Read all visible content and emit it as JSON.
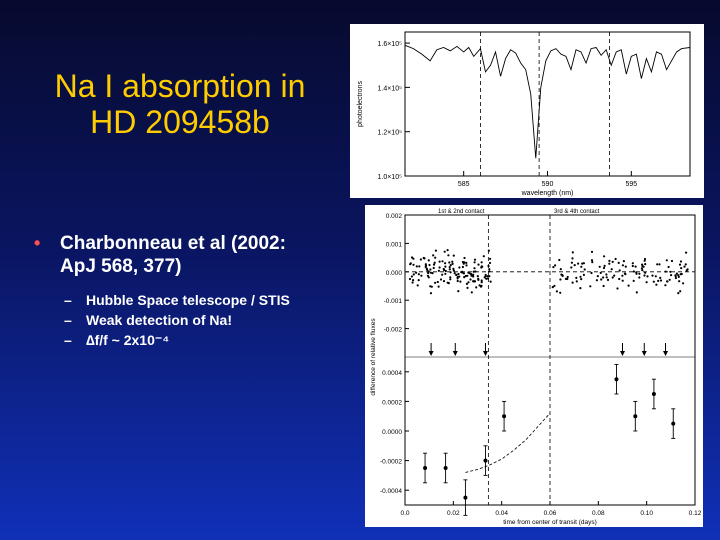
{
  "slide": {
    "title_line1": "Na I absorption in",
    "title_line2": "HD 209458b",
    "bullet": {
      "line1": "Charbonneau et al (2002:",
      "line2": "ApJ 568, 377)",
      "subbullets": [
        "Hubble Space telescope / STIS",
        "Weak detection of Na!",
        "∆f/f ~ 2x10⁻⁴"
      ]
    },
    "colors": {
      "title": "#ffcc00",
      "bullet_dot": "#ff5050",
      "text": "#ffffff"
    }
  },
  "chart_data": [
    {
      "type": "line",
      "xlabel": "wavelength (nm)",
      "ylabel": "photoelectrons",
      "ylim": [
        100000,
        165000
      ],
      "y_ticks": [
        {
          "value": 100000,
          "label": "1.0×10⁵"
        },
        {
          "value": 120000,
          "label": "1.2×10⁵"
        },
        {
          "value": 140000,
          "label": "1.4×10⁵"
        },
        {
          "value": 160000,
          "label": "1.6×10⁵"
        }
      ],
      "x_ticks": [
        {
          "value": 585,
          "label": "585"
        },
        {
          "value": 590,
          "label": "590"
        },
        {
          "value": 595,
          "label": "595"
        }
      ],
      "xlim": [
        581.5,
        598.5
      ],
      "vertical_dashed_lines": [
        586.0,
        589.5,
        593.7
      ],
      "series": [
        {
          "x": [
            581.5,
            582.0,
            582.5,
            583.0,
            583.4,
            583.8,
            584.2,
            584.6,
            585.0,
            585.3,
            585.6,
            586.0,
            586.3,
            586.6,
            586.9,
            587.2,
            587.5,
            587.8,
            588.1,
            588.4,
            588.7,
            589.0,
            589.3,
            589.6,
            589.9,
            590.2,
            590.5,
            590.8,
            591.1,
            591.4,
            591.7,
            592.0,
            592.3,
            592.6,
            592.9,
            593.2,
            593.5,
            593.8,
            594.1,
            594.4,
            594.7,
            595.0,
            595.3,
            595.6,
            595.9,
            596.2,
            596.5,
            596.8,
            597.1,
            597.4,
            597.7,
            598.0,
            598.5
          ],
          "values": [
            159000,
            157500,
            155000,
            152000,
            157000,
            158000,
            156500,
            158500,
            156000,
            158000,
            154000,
            157500,
            147000,
            150000,
            156000,
            145000,
            153000,
            157000,
            155500,
            151000,
            148000,
            137000,
            108000,
            140000,
            152000,
            156500,
            157500,
            155000,
            154000,
            148000,
            157000,
            156000,
            151000,
            157500,
            158000,
            154500,
            157000,
            150000,
            156000,
            157000,
            146000,
            154000,
            155000,
            144000,
            153000,
            147000,
            156000,
            155000,
            148000,
            152000,
            156000,
            157500,
            158000
          ]
        }
      ]
    },
    {
      "type": "scatter",
      "xlabel": "time from center of transit (days)",
      "ylabel": "difference of relative fluxes",
      "ylim": [
        -0.003,
        0.002
      ],
      "y_ticks": [
        {
          "value": 0.002,
          "label": "0.002"
        },
        {
          "value": 0.001,
          "label": "0.001"
        },
        {
          "value": 0.0,
          "label": "0.000"
        },
        {
          "value": -0.001,
          "label": "-0.001"
        },
        {
          "value": -0.002,
          "label": "-0.002"
        }
      ],
      "xlim": [
        0.0,
        0.12
      ],
      "contact_labels": [
        "1st & 2nd contact",
        "3rd & 4th contact"
      ],
      "contact_lines": [
        0.0345,
        0.06
      ],
      "mean_level": 0.0,
      "arrow_x": [
        0.0108,
        0.0208,
        0.0333,
        0.09,
        0.099,
        0.1078
      ],
      "points_note": "individual flux difference measurements scattered around zero"
    },
    {
      "type": "scatter",
      "xlabel": "time from center of transit (days)",
      "ylabel": "",
      "ylim": [
        -0.0005,
        0.0005
      ],
      "y_ticks": [
        {
          "value": 0.0004,
          "label": "0.0004"
        },
        {
          "value": 0.0002,
          "label": "0.0002"
        },
        {
          "value": 0.0,
          "label": "0.0000"
        },
        {
          "value": -0.0002,
          "label": "-0.0002"
        },
        {
          "value": -0.0004,
          "label": "-0.0004"
        }
      ],
      "xlim": [
        0.0,
        0.12
      ],
      "x_ticks": [
        {
          "value": 0.0,
          "label": "0.0"
        },
        {
          "value": 0.02,
          "label": "0.02"
        },
        {
          "value": 0.04,
          "label": "0.04"
        },
        {
          "value": 0.06,
          "label": "0.06"
        },
        {
          "value": 0.08,
          "label": "0.08"
        },
        {
          "value": 0.1,
          "label": "0.10"
        },
        {
          "value": 0.12,
          "label": "0.12"
        }
      ],
      "contact_lines": [
        0.0345,
        0.06
      ],
      "series": [
        {
          "x": [
            0.0083,
            0.0168,
            0.025,
            0.0333,
            0.041,
            0.0875,
            0.0953,
            0.103,
            0.111
          ],
          "values": [
            -0.00025,
            -0.00025,
            -0.00045,
            -0.0002,
            0.0001,
            0.00035,
            0.0001,
            0.00025,
            5e-05
          ],
          "errors": [
            0.0001,
            0.0001,
            0.00012,
            0.0001,
            0.0001,
            0.0001,
            0.0001,
            0.0001,
            0.0001
          ]
        }
      ],
      "model_curve": {
        "x": [
          0.025,
          0.03,
          0.035,
          0.04,
          0.045,
          0.05,
          0.055,
          0.06
        ],
        "values": [
          -0.00028,
          -0.00026,
          -0.00023,
          -0.00019,
          -0.00013,
          -6e-05,
          3e-05,
          0.00012
        ]
      }
    }
  ]
}
